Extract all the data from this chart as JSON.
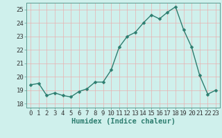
{
  "x": [
    0,
    1,
    2,
    3,
    4,
    5,
    6,
    7,
    8,
    9,
    10,
    11,
    12,
    13,
    14,
    15,
    16,
    17,
    18,
    19,
    20,
    21,
    22,
    23
  ],
  "y": [
    19.4,
    19.5,
    18.6,
    18.8,
    18.6,
    18.5,
    18.9,
    19.1,
    19.6,
    19.6,
    20.5,
    22.2,
    23.0,
    23.3,
    24.0,
    24.6,
    24.3,
    24.8,
    25.2,
    23.5,
    22.2,
    20.1,
    18.7,
    19.0
  ],
  "line_color": "#2d7d6f",
  "marker": "D",
  "marker_size": 2.5,
  "bg_color": "#cff0ec",
  "grid_color_major": "#e8b0b0",
  "grid_color_minor": "#e8b0b0",
  "xlabel": "Humidex (Indice chaleur)",
  "ylim": [
    17.7,
    25.5
  ],
  "xlim": [
    -0.5,
    23.5
  ],
  "yticks": [
    18,
    19,
    20,
    21,
    22,
    23,
    24,
    25
  ],
  "xticks": [
    0,
    1,
    2,
    3,
    4,
    5,
    6,
    7,
    8,
    9,
    10,
    11,
    12,
    13,
    14,
    15,
    16,
    17,
    18,
    19,
    20,
    21,
    22,
    23
  ],
  "xlabel_fontsize": 7.5,
  "tick_fontsize": 6.5,
  "line_width": 1.0,
  "spine_color": "#5a9a90"
}
